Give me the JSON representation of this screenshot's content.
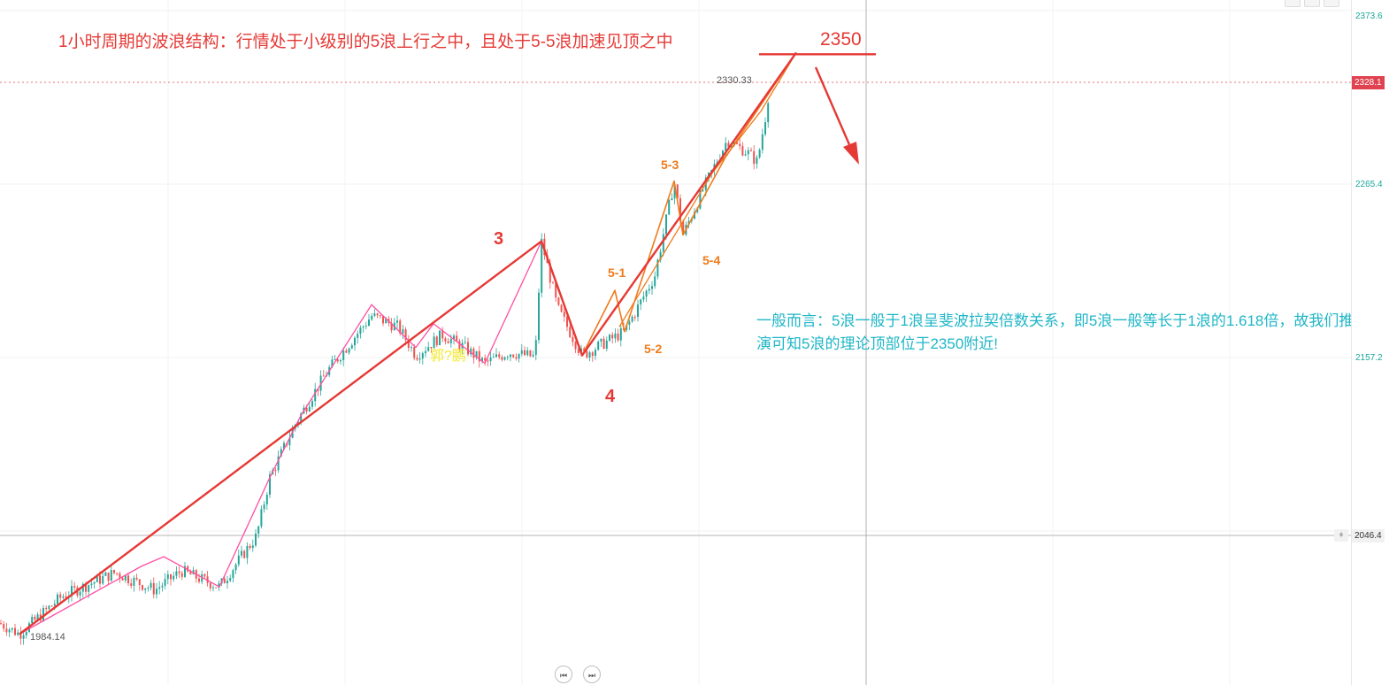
{
  "header": {
    "ohlc_line": ""
  },
  "annotations": {
    "title": "1小时周期的波浪结构：行情处于小级别的5浪上行之中，且处于5-5浪加速见顶之中",
    "target": "2350",
    "note": "一般而言：5浪一般于1浪呈斐波拉契倍数关系，即5浪一般等长于1浪的1.618倍，故我们推演可知5浪的理论顶部位于2350附近!",
    "wave3": "3",
    "wave4": "4",
    "wave5_1": "5-1",
    "wave5_2": "5-2",
    "wave5_3": "5-3",
    "wave5_4": "5-4",
    "high_mark": "2330.33",
    "low_mark": "1984.14",
    "watermark": "郭?鹏"
  },
  "price_axis": {
    "labels": [
      "2373.6",
      "2265.4",
      "2157.2",
      "2046.4"
    ],
    "current_price": "2328.1"
  },
  "colors": {
    "candle_up": "#26a69a",
    "candle_down": "#ef5350",
    "major_wave": "#e53935",
    "sub_wave_pink": "#ff4fa3",
    "sub_wave_orange": "#f07a1a",
    "annotation_cyan": "#1fb6c7"
  },
  "icons": {
    "prev_button": "skip-back-icon",
    "play_button": "play-icon",
    "alert": "bell-icon"
  },
  "chart_data": {
    "type": "candlestick",
    "y_axis_ticks": [
      2373.6,
      2265.4,
      2157.2,
      2046.4
    ],
    "current_price": 2328.1,
    "low": 1984.14,
    "high": 2330.33,
    "target": 2350,
    "wave_pivots": [
      {
        "label": "",
        "price": 1984.14
      },
      {
        "label": "3",
        "price": 2232
      },
      {
        "label": "4",
        "price": 2160
      },
      {
        "label": "",
        "price": 2350
      }
    ],
    "sub_wave_pivots": [
      {
        "label": "5-1",
        "price": 2201
      },
      {
        "label": "5-2",
        "price": 2170
      },
      {
        "label": "5-3",
        "price": 2270
      },
      {
        "label": "5-4",
        "price": 2236
      }
    ]
  }
}
